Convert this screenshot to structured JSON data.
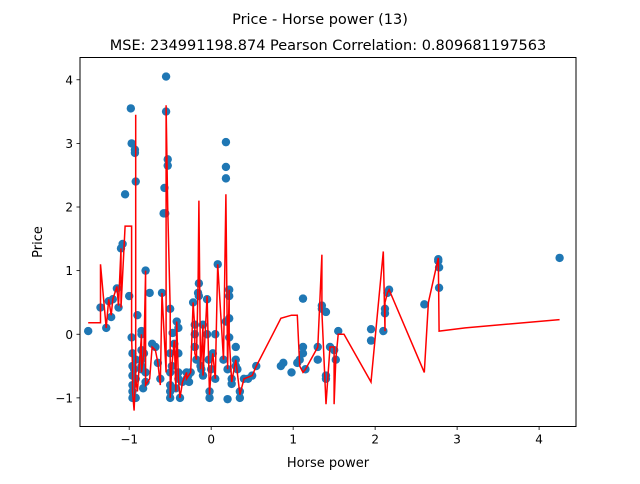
{
  "chart_data": {
    "type": "scatter",
    "title": "Price - Horse power (13)",
    "subtitle": "MSE: 234991198.874 Pearson Correlation: 0.809681197563",
    "xlabel": "Horse power",
    "ylabel": "Price",
    "xlim": [
      -1.6,
      4.45
    ],
    "ylim": [
      -1.45,
      4.35
    ],
    "xticks": [
      -1,
      0,
      1,
      2,
      3,
      4
    ],
    "yticks": [
      -1,
      0,
      1,
      2,
      3,
      4
    ],
    "grid": false,
    "colors": {
      "scatter": "#1f77b4",
      "line": "#ff0000"
    },
    "series": [
      {
        "type": "scatter",
        "points": [
          [
            -1.5,
            0.05
          ],
          [
            -1.35,
            0.42
          ],
          [
            -1.28,
            0.1
          ],
          [
            -1.25,
            0.52
          ],
          [
            -1.22,
            0.27
          ],
          [
            -1.2,
            0.55
          ],
          [
            -1.15,
            0.72
          ],
          [
            -1.13,
            0.42
          ],
          [
            -1.1,
            1.35
          ],
          [
            -1.08,
            1.42
          ],
          [
            -1.05,
            2.2
          ],
          [
            -1.0,
            0.6
          ],
          [
            -0.98,
            3.55
          ],
          [
            -0.97,
            3.0
          ],
          [
            -0.97,
            -0.05
          ],
          [
            -0.96,
            -0.3
          ],
          [
            -0.96,
            -0.5
          ],
          [
            -0.96,
            -0.65
          ],
          [
            -0.96,
            -0.8
          ],
          [
            -0.96,
            -0.9
          ],
          [
            -0.96,
            -1.0
          ],
          [
            -0.94,
            -0.55
          ],
          [
            -0.93,
            2.9
          ],
          [
            -0.93,
            2.85
          ],
          [
            -0.92,
            2.4
          ],
          [
            -0.92,
            -0.4
          ],
          [
            -0.92,
            -0.7
          ],
          [
            -0.92,
            -1.0
          ],
          [
            -0.9,
            0.3
          ],
          [
            -0.85,
            0.05
          ],
          [
            -0.85,
            0.0
          ],
          [
            -0.85,
            -0.25
          ],
          [
            -0.85,
            -0.55
          ],
          [
            -0.85,
            -0.4
          ],
          [
            -0.85,
            -0.5
          ],
          [
            -0.83,
            -0.85
          ],
          [
            -0.82,
            -0.3
          ],
          [
            -0.8,
            1.0
          ],
          [
            -0.8,
            -0.6
          ],
          [
            -0.8,
            -0.75
          ],
          [
            -0.75,
            0.65
          ],
          [
            -0.72,
            -0.15
          ],
          [
            -0.68,
            -0.2
          ],
          [
            -0.65,
            -0.45
          ],
          [
            -0.62,
            -0.7
          ],
          [
            -0.6,
            0.65
          ],
          [
            -0.58,
            1.9
          ],
          [
            -0.57,
            2.3
          ],
          [
            -0.56,
            1.9
          ],
          [
            -0.55,
            4.05
          ],
          [
            -0.55,
            3.5
          ],
          [
            -0.53,
            2.75
          ],
          [
            -0.53,
            2.65
          ],
          [
            -0.5,
            0.4
          ],
          [
            -0.5,
            -0.3
          ],
          [
            -0.5,
            -0.6
          ],
          [
            -0.5,
            -0.8
          ],
          [
            -0.5,
            -0.9
          ],
          [
            -0.5,
            -1.0
          ],
          [
            -0.48,
            -0.5
          ],
          [
            -0.47,
            0.02
          ],
          [
            -0.45,
            -0.15
          ],
          [
            -0.43,
            -0.85
          ],
          [
            -0.42,
            0.2
          ],
          [
            -0.4,
            0.1
          ],
          [
            -0.4,
            -0.3
          ],
          [
            -0.4,
            -0.6
          ],
          [
            -0.4,
            -0.7
          ],
          [
            -0.38,
            -1.0
          ],
          [
            -0.35,
            -0.75
          ],
          [
            -0.3,
            -0.6
          ],
          [
            -0.3,
            -0.7
          ],
          [
            -0.28,
            -0.65
          ],
          [
            -0.27,
            -0.75
          ],
          [
            -0.25,
            -0.6
          ],
          [
            -0.22,
            0.5
          ],
          [
            -0.2,
            0.15
          ],
          [
            -0.2,
            0.0
          ],
          [
            -0.2,
            -0.2
          ],
          [
            -0.18,
            -0.4
          ],
          [
            -0.16,
            0.65
          ],
          [
            -0.15,
            0.8
          ],
          [
            -0.15,
            0.6
          ],
          [
            -0.13,
            -0.5
          ],
          [
            -0.12,
            -0.55
          ],
          [
            -0.1,
            0.15
          ],
          [
            -0.1,
            -0.65
          ],
          [
            -0.05,
            0.55
          ],
          [
            -0.05,
            0.0
          ],
          [
            -0.03,
            -0.4
          ],
          [
            -0.02,
            -0.9
          ],
          [
            -0.02,
            -1.0
          ],
          [
            0.0,
            -0.55
          ],
          [
            0.02,
            -0.3
          ],
          [
            0.05,
            -0.7
          ],
          [
            0.05,
            0.0
          ],
          [
            0.08,
            1.1
          ],
          [
            0.15,
            -0.4
          ],
          [
            0.18,
            3.02
          ],
          [
            0.18,
            2.63
          ],
          [
            0.18,
            2.45
          ],
          [
            0.18,
            0.2
          ],
          [
            0.2,
            -0.55
          ],
          [
            0.2,
            -1.02
          ],
          [
            0.22,
            0.7
          ],
          [
            0.22,
            0.6
          ],
          [
            0.22,
            0.25
          ],
          [
            0.22,
            -0.05
          ],
          [
            0.25,
            -0.7
          ],
          [
            0.25,
            -0.78
          ],
          [
            0.3,
            -0.2
          ],
          [
            0.3,
            -0.4
          ],
          [
            0.3,
            -0.5
          ],
          [
            0.32,
            -0.55
          ],
          [
            0.35,
            -0.9
          ],
          [
            0.35,
            -1.0
          ],
          [
            0.4,
            -0.7
          ],
          [
            0.45,
            -0.7
          ],
          [
            0.5,
            -0.65
          ],
          [
            0.55,
            -0.5
          ],
          [
            0.85,
            -0.5
          ],
          [
            0.88,
            -0.45
          ],
          [
            0.98,
            -0.6
          ],
          [
            1.05,
            -0.45
          ],
          [
            1.08,
            -0.4
          ],
          [
            1.12,
            -0.2
          ],
          [
            1.12,
            -0.3
          ],
          [
            1.12,
            0.56
          ],
          [
            1.15,
            -0.55
          ],
          [
            1.3,
            -0.2
          ],
          [
            1.3,
            -0.4
          ],
          [
            1.35,
            0.45
          ],
          [
            1.35,
            0.4
          ],
          [
            1.4,
            0.35
          ],
          [
            1.4,
            -0.7
          ],
          [
            1.4,
            -0.65
          ],
          [
            1.45,
            -0.2
          ],
          [
            1.5,
            -0.25
          ],
          [
            1.52,
            -0.4
          ],
          [
            1.55,
            0.05
          ],
          [
            1.95,
            0.08
          ],
          [
            1.95,
            -0.1
          ],
          [
            2.1,
            0.05
          ],
          [
            2.12,
            0.4
          ],
          [
            2.12,
            0.33
          ],
          [
            2.15,
            0.65
          ],
          [
            2.17,
            0.7
          ],
          [
            2.6,
            0.47
          ],
          [
            2.77,
            1.18
          ],
          [
            2.77,
            1.15
          ],
          [
            2.78,
            1.05
          ],
          [
            2.78,
            0.73
          ],
          [
            4.25,
            1.2
          ]
        ]
      },
      {
        "type": "line",
        "points": [
          [
            -1.5,
            0.18
          ],
          [
            -1.35,
            0.18
          ],
          [
            -1.35,
            1.1
          ],
          [
            -1.28,
            0.1
          ],
          [
            -1.25,
            0.55
          ],
          [
            -1.22,
            0.3
          ],
          [
            -1.2,
            0.55
          ],
          [
            -1.15,
            0.75
          ],
          [
            -1.13,
            0.45
          ],
          [
            -1.1,
            1.35
          ],
          [
            -1.1,
            0.42
          ],
          [
            -1.05,
            1.7
          ],
          [
            -0.97,
            1.7
          ],
          [
            -0.97,
            -0.05
          ],
          [
            -0.96,
            -0.5
          ],
          [
            -0.96,
            -0.9
          ],
          [
            -0.94,
            -1.2
          ],
          [
            -0.93,
            -0.9
          ],
          [
            -0.92,
            -0.4
          ],
          [
            -0.92,
            3.45
          ],
          [
            -0.92,
            -0.7
          ],
          [
            -0.9,
            -0.9
          ],
          [
            -0.85,
            0.0
          ],
          [
            -0.85,
            -0.6
          ],
          [
            -0.82,
            -0.3
          ],
          [
            -0.8,
            1.0
          ],
          [
            -0.8,
            -0.8
          ],
          [
            -0.75,
            -0.7
          ],
          [
            -0.72,
            -0.2
          ],
          [
            -0.68,
            -0.25
          ],
          [
            -0.65,
            -0.45
          ],
          [
            -0.62,
            -0.8
          ],
          [
            -0.6,
            0.65
          ],
          [
            -0.55,
            -0.6
          ],
          [
            -0.55,
            3.6
          ],
          [
            -0.53,
            2.0
          ],
          [
            -0.5,
            0.4
          ],
          [
            -0.5,
            -1.0
          ],
          [
            -0.48,
            -0.5
          ],
          [
            -0.45,
            -0.1
          ],
          [
            -0.43,
            -0.9
          ],
          [
            -0.42,
            0.2
          ],
          [
            -0.4,
            -0.7
          ],
          [
            -0.38,
            -1.0
          ],
          [
            -0.35,
            -0.75
          ],
          [
            -0.3,
            -0.6
          ],
          [
            -0.3,
            -0.7
          ],
          [
            -0.25,
            -0.6
          ],
          [
            -0.22,
            0.5
          ],
          [
            -0.2,
            0.1
          ],
          [
            -0.2,
            -0.3
          ],
          [
            -0.18,
            -0.4
          ],
          [
            -0.16,
            0.8
          ],
          [
            -0.15,
            2.1
          ],
          [
            -0.13,
            -0.55
          ],
          [
            -0.1,
            0.15
          ],
          [
            -0.1,
            -0.65
          ],
          [
            -0.05,
            0.6
          ],
          [
            -0.03,
            -0.45
          ],
          [
            -0.02,
            -0.95
          ],
          [
            0.0,
            -0.55
          ],
          [
            0.02,
            -0.3
          ],
          [
            0.05,
            -0.7
          ],
          [
            0.08,
            1.1
          ],
          [
            0.15,
            -0.4
          ],
          [
            0.18,
            2.2
          ],
          [
            0.2,
            -0.55
          ],
          [
            0.22,
            0.7
          ],
          [
            0.22,
            -0.05
          ],
          [
            0.25,
            -0.75
          ],
          [
            0.3,
            -0.4
          ],
          [
            0.35,
            -0.95
          ],
          [
            0.4,
            -0.7
          ],
          [
            0.5,
            -0.65
          ],
          [
            0.55,
            -0.5
          ],
          [
            0.75,
            0.0
          ],
          [
            0.85,
            0.25
          ],
          [
            0.98,
            0.3
          ],
          [
            1.05,
            0.3
          ],
          [
            1.08,
            -0.5
          ],
          [
            1.12,
            -0.6
          ],
          [
            1.15,
            -0.55
          ],
          [
            1.3,
            -0.2
          ],
          [
            1.35,
            1.25
          ],
          [
            1.35,
            0.35
          ],
          [
            1.4,
            -1.1
          ],
          [
            1.45,
            -0.2
          ],
          [
            1.5,
            -0.2
          ],
          [
            1.5,
            -1.1
          ],
          [
            1.52,
            -0.4
          ],
          [
            1.55,
            0.0
          ],
          [
            1.62,
            0.0
          ],
          [
            1.95,
            -0.75
          ],
          [
            2.1,
            1.3
          ],
          [
            2.12,
            0.05
          ],
          [
            2.12,
            0.5
          ],
          [
            2.15,
            0.65
          ],
          [
            2.17,
            0.7
          ],
          [
            2.6,
            -0.6
          ],
          [
            2.65,
            0.5
          ],
          [
            2.77,
            1.2
          ],
          [
            2.78,
            0.05
          ],
          [
            3.1,
            0.1
          ],
          [
            4.25,
            0.23
          ]
        ]
      }
    ]
  }
}
